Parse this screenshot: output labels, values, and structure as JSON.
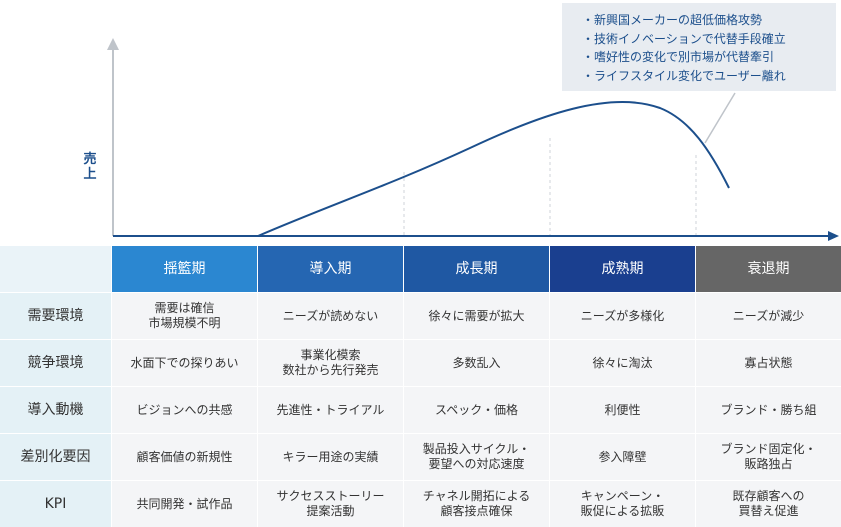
{
  "callout": {
    "lines": [
      "・新興国メーカーの超低価格攻勢",
      "・技術イノベーションで代替手段確立",
      "・嗜好性の変化で別市場が代替牽引",
      "・ライフスタイル変化でユーザー離れ"
    ]
  },
  "y_axis_label": "売上",
  "colors": {
    "stage_1": "#2b87d1",
    "stage_2": "#2566b2",
    "stage_3": "#1f58a3",
    "stage_4": "#1a3f8f",
    "stage_5": "#666666",
    "axis": "#1c4f8c",
    "curve": "#1c4f8c"
  },
  "stages": [
    "揺籃期",
    "導入期",
    "成長期",
    "成熟期",
    "衰退期"
  ],
  "rows": [
    {
      "label": "需要環境",
      "cells": [
        [
          "需要は確信",
          "市場規模不明"
        ],
        [
          "ニーズが読めない"
        ],
        [
          "徐々に需要が拡大"
        ],
        [
          "ニーズが多様化"
        ],
        [
          "ニーズが減少"
        ]
      ]
    },
    {
      "label": "競争環境",
      "cells": [
        [
          "水面下での探りあい"
        ],
        [
          "事業化模索",
          "数社から先行発売"
        ],
        [
          "多数乱入"
        ],
        [
          "徐々に淘汰"
        ],
        [
          "寡占状態"
        ]
      ]
    },
    {
      "label": "導入動機",
      "cells": [
        [
          "ビジョンへの共感"
        ],
        [
          "先進性・トライアル"
        ],
        [
          "スペック・価格"
        ],
        [
          "利便性"
        ],
        [
          "ブランド・勝ち組"
        ]
      ]
    },
    {
      "label": "差別化要因",
      "cells": [
        [
          "顧客価値の新規性"
        ],
        [
          "キラー用途の実績"
        ],
        [
          "製品投入サイクル・",
          "要望への対応速度"
        ],
        [
          "参入障壁"
        ],
        [
          "ブランド固定化・",
          "販路独占"
        ]
      ]
    },
    {
      "label": "KPI",
      "cells": [
        [
          "共同開発・試作品"
        ],
        [
          "サクセスストーリー",
          "提案活動"
        ],
        [
          "チャネル開拓による",
          "顧客接点確保"
        ],
        [
          "キャンペーン・",
          "販促による拡販"
        ],
        [
          "既存顧客への",
          "買替え促進"
        ]
      ]
    }
  ]
}
